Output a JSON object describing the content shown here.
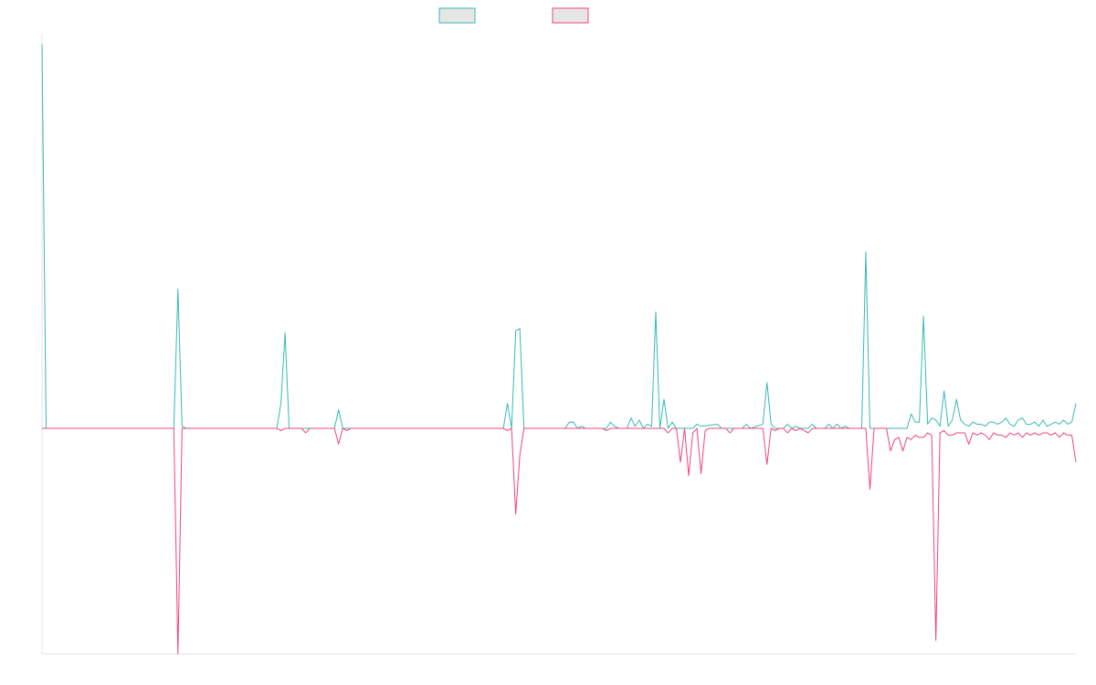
{
  "chart_data": {
    "type": "line",
    "x_count": 250,
    "ylim": [
      -1.0,
      1.9
    ],
    "grid": false,
    "legend_placement": "top-center",
    "legend": [
      {
        "series_index": 0,
        "swatch_fill": "#e6e6e6",
        "color": "#36b9b6"
      },
      {
        "series_index": 1,
        "swatch_fill": "#e6e6e6",
        "color": "#f0457a"
      }
    ],
    "series": [
      {
        "color": "#36b9b6",
        "points": [
          [
            0,
            1.85
          ],
          [
            1,
            0
          ],
          [
            32,
            0
          ],
          [
            33,
            0.67
          ],
          [
            34,
            0.01
          ],
          [
            35,
            0
          ],
          [
            57,
            0
          ],
          [
            58,
            0.12
          ],
          [
            59,
            0.46
          ],
          [
            60,
            0
          ],
          [
            71,
            0
          ],
          [
            72,
            0.09
          ],
          [
            73,
            0
          ],
          [
            80,
            0
          ],
          [
            112,
            0
          ],
          [
            113,
            0.12
          ],
          [
            114,
            0
          ],
          [
            115,
            0.47
          ],
          [
            116,
            0.48
          ],
          [
            117,
            0
          ],
          [
            127,
            0
          ],
          [
            128,
            0.03
          ],
          [
            129,
            0.03
          ],
          [
            130,
            0
          ],
          [
            131,
            0.01
          ],
          [
            132,
            0
          ],
          [
            137,
            0
          ],
          [
            138,
            0.03
          ],
          [
            139,
            0.01
          ],
          [
            140,
            0
          ],
          [
            142,
            0
          ],
          [
            143,
            0.05
          ],
          [
            144,
            0.01
          ],
          [
            145,
            0.04
          ],
          [
            146,
            0
          ],
          [
            147,
            0.02
          ],
          [
            148,
            0.01
          ],
          [
            149,
            0.56
          ],
          [
            150,
            0
          ],
          [
            151,
            0.14
          ],
          [
            152,
            0
          ],
          [
            153,
            0.03
          ],
          [
            154,
            0
          ],
          [
            158,
            0
          ],
          [
            159,
            0.02
          ],
          [
            160,
            0.01
          ],
          [
            164,
            0.02
          ],
          [
            165,
            0
          ],
          [
            170,
            0
          ],
          [
            171,
            0.02
          ],
          [
            172,
            0
          ],
          [
            175,
            0.02
          ],
          [
            176,
            0.22
          ],
          [
            177,
            0.02
          ],
          [
            178,
            0
          ],
          [
            180,
            0
          ],
          [
            181,
            0.02
          ],
          [
            182,
            0
          ],
          [
            183,
            0.01
          ],
          [
            184,
            0
          ],
          [
            186,
            0
          ],
          [
            187,
            0.02
          ],
          [
            188,
            0
          ],
          [
            190,
            0
          ],
          [
            191,
            0.02
          ],
          [
            192,
            0
          ],
          [
            193,
            0.02
          ],
          [
            194,
            0
          ],
          [
            195,
            0.01
          ],
          [
            196,
            0
          ],
          [
            197,
            0
          ],
          [
            198,
            0
          ],
          [
            199,
            0
          ],
          [
            200,
            0.85
          ],
          [
            201,
            0
          ],
          [
            210,
            0
          ],
          [
            211,
            0.07
          ],
          [
            212,
            0.03
          ],
          [
            213,
            0.03
          ],
          [
            214,
            0.54
          ],
          [
            215,
            0.02
          ],
          [
            216,
            0.05
          ],
          [
            217,
            0.04
          ],
          [
            218,
            0.01
          ],
          [
            219,
            0.18
          ],
          [
            220,
            0.01
          ],
          [
            221,
            0.04
          ],
          [
            222,
            0.14
          ],
          [
            223,
            0.04
          ],
          [
            224,
            0.02
          ],
          [
            225,
            0.01
          ],
          [
            226,
            0.03
          ],
          [
            227,
            0.02
          ],
          [
            228,
            0.02
          ],
          [
            229,
            0.01
          ],
          [
            230,
            0.03
          ],
          [
            231,
            0.03
          ],
          [
            232,
            0.02
          ],
          [
            233,
            0.03
          ],
          [
            234,
            0.05
          ],
          [
            235,
            0.02
          ],
          [
            236,
            0.01
          ],
          [
            237,
            0.04
          ],
          [
            238,
            0.05
          ],
          [
            239,
            0.02
          ],
          [
            240,
            0.02
          ],
          [
            241,
            0.03
          ],
          [
            242,
            0.01
          ],
          [
            243,
            0.04
          ],
          [
            244,
            0.01
          ],
          [
            245,
            0.02
          ],
          [
            246,
            0.03
          ],
          [
            247,
            0.02
          ],
          [
            248,
            0.04
          ],
          [
            249,
            0.02
          ],
          [
            250,
            0.03
          ],
          [
            251,
            0.12
          ]
        ]
      },
      {
        "color": "#f0457a",
        "points": [
          [
            0,
            0
          ],
          [
            32,
            0
          ],
          [
            33,
            -1.0
          ],
          [
            34,
            0
          ],
          [
            57,
            0
          ],
          [
            58,
            -0.01
          ],
          [
            59,
            0
          ],
          [
            63,
            0
          ],
          [
            64,
            -0.02
          ],
          [
            65,
            0
          ],
          [
            71,
            0
          ],
          [
            72,
            -0.07
          ],
          [
            73,
            0
          ],
          [
            74,
            -0.01
          ],
          [
            75,
            0
          ],
          [
            112,
            0
          ],
          [
            113,
            -0.01
          ],
          [
            114,
            0
          ],
          [
            115,
            -0.38
          ],
          [
            116,
            -0.12
          ],
          [
            117,
            0
          ],
          [
            136,
            0
          ],
          [
            137,
            -0.01
          ],
          [
            138,
            0
          ],
          [
            151,
            0
          ],
          [
            152,
            -0.02
          ],
          [
            153,
            0
          ],
          [
            154,
            0
          ],
          [
            155,
            -0.15
          ],
          [
            156,
            0
          ],
          [
            157,
            -0.21
          ],
          [
            158,
            -0.02
          ],
          [
            159,
            0
          ],
          [
            160,
            -0.2
          ],
          [
            161,
            -0.01
          ],
          [
            162,
            0
          ],
          [
            166,
            0
          ],
          [
            167,
            -0.02
          ],
          [
            168,
            0
          ],
          [
            175,
            0
          ],
          [
            176,
            -0.16
          ],
          [
            177,
            0
          ],
          [
            178,
            -0.01
          ],
          [
            179,
            0
          ],
          [
            180,
            0
          ],
          [
            181,
            -0.02
          ],
          [
            182,
            0
          ],
          [
            183,
            -0.01
          ],
          [
            184,
            0
          ],
          [
            185,
            -0.01
          ],
          [
            186,
            -0.02
          ],
          [
            187,
            0
          ],
          [
            200,
            0
          ],
          [
            201,
            -0.27
          ],
          [
            202,
            0
          ],
          [
            205,
            0
          ],
          [
            206,
            -0.1
          ],
          [
            207,
            -0.05
          ],
          [
            208,
            -0.04
          ],
          [
            209,
            -0.1
          ],
          [
            210,
            -0.04
          ],
          [
            211,
            -0.05
          ],
          [
            212,
            -0.03
          ],
          [
            213,
            -0.04
          ],
          [
            214,
            -0.04
          ],
          [
            215,
            -0.02
          ],
          [
            216,
            -0.03
          ],
          [
            217,
            -0.94
          ],
          [
            218,
            -0.02
          ],
          [
            219,
            -0.01
          ],
          [
            220,
            -0.03
          ],
          [
            221,
            -0.03
          ],
          [
            222,
            -0.02
          ],
          [
            223,
            -0.02
          ],
          [
            224,
            -0.02
          ],
          [
            225,
            -0.07
          ],
          [
            226,
            -0.02
          ],
          [
            227,
            -0.03
          ],
          [
            228,
            -0.02
          ],
          [
            229,
            -0.03
          ],
          [
            230,
            -0.05
          ],
          [
            231,
            -0.02
          ],
          [
            232,
            -0.03
          ],
          [
            233,
            -0.03
          ],
          [
            234,
            -0.04
          ],
          [
            235,
            -0.02
          ],
          [
            236,
            -0.03
          ],
          [
            237,
            -0.02
          ],
          [
            238,
            -0.04
          ],
          [
            239,
            -0.02
          ],
          [
            240,
            -0.03
          ],
          [
            241,
            -0.02
          ],
          [
            242,
            -0.03
          ],
          [
            243,
            -0.02
          ],
          [
            244,
            -0.02
          ],
          [
            245,
            -0.03
          ],
          [
            246,
            -0.02
          ],
          [
            247,
            -0.04
          ],
          [
            248,
            -0.02
          ],
          [
            249,
            -0.03
          ],
          [
            250,
            -0.03
          ],
          [
            251,
            -0.15
          ]
        ]
      }
    ]
  }
}
